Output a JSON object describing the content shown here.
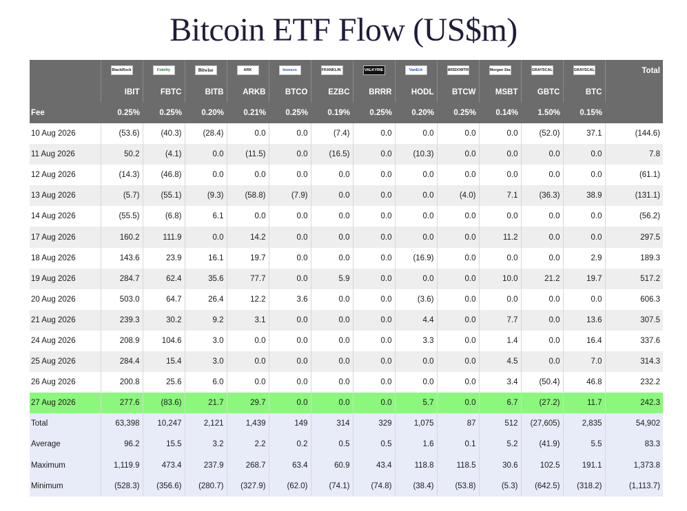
{
  "title": "Bitcoin ETF Flow (US$m)",
  "header": {
    "total_label": "Total",
    "fee_label": "Fee"
  },
  "logos": [
    {
      "name": "blackrock-logo",
      "text": "BlackRock",
      "style": "plain"
    },
    {
      "name": "fidelity-logo",
      "text": "Fidelity",
      "style": "fid"
    },
    {
      "name": "bitwise-logo",
      "text": "Bitwise",
      "style": "serif"
    },
    {
      "name": "ark-invest-logo",
      "text": "ARK",
      "style": "plain"
    },
    {
      "name": "invesco-logo",
      "text": "Invesco",
      "style": "blue"
    },
    {
      "name": "franklin-templeton-logo",
      "text": "FRANKLIN TEMPLETON",
      "style": "plain"
    },
    {
      "name": "valkyrie-logo",
      "text": "VALKYRIE",
      "style": "dark"
    },
    {
      "name": "vaneck-logo",
      "text": "VanEck",
      "style": "blue"
    },
    {
      "name": "wisdomtree-logo",
      "text": "WISDOMTREE",
      "style": "plain"
    },
    {
      "name": "morgan-stanley-logo",
      "text": "Morgan Stanley",
      "style": "plain"
    },
    {
      "name": "grayscale-logo",
      "text": "GRAYSCALE",
      "style": "plain"
    },
    {
      "name": "grayscale-mini-logo",
      "text": "GRAYSCALE",
      "style": "plain"
    }
  ],
  "tickers": [
    "IBIT",
    "FBTC",
    "BITB",
    "ARKB",
    "BTCO",
    "EZBC",
    "BRRR",
    "HODL",
    "BTCW",
    "MSBT",
    "GBTC",
    "BTC"
  ],
  "fees": [
    "0.25%",
    "0.25%",
    "0.20%",
    "0.21%",
    "0.25%",
    "0.19%",
    "0.25%",
    "0.20%",
    "0.25%",
    "0.14%",
    "1.50%",
    "0.15%"
  ],
  "rows": [
    {
      "date": "10 Aug 2026",
      "values": [
        "(53.6)",
        "(40.3)",
        "(28.4)",
        "0.0",
        "0.0",
        "(7.4)",
        "0.0",
        "0.0",
        "0.0",
        "0.0",
        "(52.0)",
        "37.1"
      ],
      "total": "(144.6)"
    },
    {
      "date": "11 Aug 2026",
      "values": [
        "50.2",
        "(4.1)",
        "0.0",
        "(11.5)",
        "0.0",
        "(16.5)",
        "0.0",
        "(10.3)",
        "0.0",
        "0.0",
        "0.0",
        "0.0"
      ],
      "total": "7.8"
    },
    {
      "date": "12 Aug 2026",
      "values": [
        "(14.3)",
        "(46.8)",
        "0.0",
        "0.0",
        "0.0",
        "0.0",
        "0.0",
        "0.0",
        "0.0",
        "0.0",
        "0.0",
        "0.0"
      ],
      "total": "(61.1)"
    },
    {
      "date": "13 Aug 2026",
      "values": [
        "(5.7)",
        "(55.1)",
        "(9.3)",
        "(58.8)",
        "(7.9)",
        "0.0",
        "0.0",
        "0.0",
        "(4.0)",
        "7.1",
        "(36.3)",
        "38.9"
      ],
      "total": "(131.1)"
    },
    {
      "date": "14 Aug 2026",
      "values": [
        "(55.5)",
        "(6.8)",
        "6.1",
        "0.0",
        "0.0",
        "0.0",
        "0.0",
        "0.0",
        "0.0",
        "0.0",
        "0.0",
        "0.0"
      ],
      "total": "(56.2)"
    },
    {
      "date": "17 Aug 2026",
      "values": [
        "160.2",
        "111.9",
        "0.0",
        "14.2",
        "0.0",
        "0.0",
        "0.0",
        "0.0",
        "0.0",
        "11.2",
        "0.0",
        "0.0"
      ],
      "total": "297.5"
    },
    {
      "date": "18 Aug 2026",
      "values": [
        "143.6",
        "23.9",
        "16.1",
        "19.7",
        "0.0",
        "0.0",
        "0.0",
        "(16.9)",
        "0.0",
        "0.0",
        "0.0",
        "2.9"
      ],
      "total": "189.3"
    },
    {
      "date": "19 Aug 2026",
      "values": [
        "284.7",
        "62.4",
        "35.6",
        "77.7",
        "0.0",
        "5.9",
        "0.0",
        "0.0",
        "0.0",
        "10.0",
        "21.2",
        "19.7"
      ],
      "total": "517.2"
    },
    {
      "date": "20 Aug 2026",
      "values": [
        "503.0",
        "64.7",
        "26.4",
        "12.2",
        "3.6",
        "0.0",
        "0.0",
        "(3.6)",
        "0.0",
        "0.0",
        "0.0",
        "0.0"
      ],
      "total": "606.3"
    },
    {
      "date": "21 Aug 2026",
      "values": [
        "239.3",
        "30.2",
        "9.2",
        "3.1",
        "0.0",
        "0.0",
        "0.0",
        "4.4",
        "0.0",
        "7.7",
        "0.0",
        "13.6"
      ],
      "total": "307.5"
    },
    {
      "date": "24 Aug 2026",
      "values": [
        "208.9",
        "104.6",
        "3.0",
        "0.0",
        "0.0",
        "0.0",
        "0.0",
        "3.3",
        "0.0",
        "1.4",
        "0.0",
        "16.4"
      ],
      "total": "337.6"
    },
    {
      "date": "25 Aug 2026",
      "values": [
        "284.4",
        "15.4",
        "3.0",
        "0.0",
        "0.0",
        "0.0",
        "0.0",
        "0.0",
        "0.0",
        "4.5",
        "0.0",
        "7.0"
      ],
      "total": "314.3"
    },
    {
      "date": "26 Aug 2026",
      "values": [
        "200.8",
        "25.6",
        "6.0",
        "0.0",
        "0.0",
        "0.0",
        "0.0",
        "0.0",
        "0.0",
        "3.4",
        "(50.4)",
        "46.8"
      ],
      "total": "232.2"
    },
    {
      "date": "27 Aug 2026",
      "values": [
        "277.6",
        "(83.6)",
        "21.7",
        "29.7",
        "0.0",
        "0.0",
        "0.0",
        "5.7",
        "0.0",
        "6.7",
        "(27.2)",
        "11.7"
      ],
      "total": "242.3",
      "highlight": true
    }
  ],
  "stats": [
    {
      "label": "Total",
      "values": [
        "63,398",
        "10,247",
        "2,121",
        "1,439",
        "149",
        "314",
        "329",
        "1,075",
        "87",
        "512",
        "(27,605)",
        "2,835"
      ],
      "total": "54,902"
    },
    {
      "label": "Average",
      "values": [
        "96.2",
        "15.5",
        "3.2",
        "2.2",
        "0.2",
        "0.5",
        "0.5",
        "1.6",
        "0.1",
        "5.2",
        "(41.9)",
        "5.5"
      ],
      "total": "83.3"
    },
    {
      "label": "Maximum",
      "values": [
        "1,119.9",
        "473.4",
        "237.9",
        "268.7",
        "63.4",
        "60.9",
        "43.4",
        "118.8",
        "118.5",
        "30.6",
        "102.5",
        "191.1"
      ],
      "total": "1,373.8"
    },
    {
      "label": "Minimum",
      "values": [
        "(528.3)",
        "(356.6)",
        "(280.7)",
        "(327.9)",
        "(62.0)",
        "(74.1)",
        "(74.8)",
        "(38.4)",
        "(53.8)",
        "(5.3)",
        "(642.5)",
        "(318.2)"
      ],
      "total": "(1,113.7)"
    }
  ],
  "colors": {
    "negative": "#e01b1b",
    "zero": "#b8b8b8",
    "header_bg": "#6c6c6c",
    "highlight_bg": "#8cf77d",
    "stats_bg": "#e8ecf9"
  }
}
